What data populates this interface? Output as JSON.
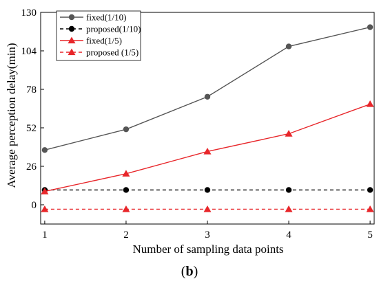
{
  "chart_data": {
    "type": "line",
    "xlabel": "Number of sampling data points",
    "ylabel": "Average perception delay(min)",
    "x": [
      1,
      2,
      3,
      4,
      5
    ],
    "xlim": [
      0.95,
      5.05
    ],
    "ylim": [
      -13,
      130
    ],
    "yticks": [
      0,
      26,
      52,
      78,
      104,
      130
    ],
    "xticks": [
      1,
      2,
      3,
      4,
      5
    ],
    "grid": false,
    "legend_position": "top-left",
    "series": [
      {
        "name": "fixed(1/10)",
        "values": [
          37,
          51,
          73,
          107,
          120
        ],
        "color": "#555555",
        "line": "solid",
        "marker": "circle"
      },
      {
        "name": "proposed(1/10)",
        "values": [
          10,
          10,
          10,
          10,
          10
        ],
        "color": "#000000",
        "line": "dashed",
        "marker": "circle"
      },
      {
        "name": "fixed(1/5)",
        "values": [
          9,
          21,
          36,
          48,
          68
        ],
        "color": "#e8262a",
        "line": "solid",
        "marker": "triangle"
      },
      {
        "name": "proposed (1/5)",
        "values": [
          -3,
          -3,
          -3,
          -3,
          -3
        ],
        "color": "#e8262a",
        "line": "dashed",
        "marker": "triangle"
      }
    ]
  },
  "caption": {
    "open": "(",
    "letter": "b",
    "close": ")"
  }
}
